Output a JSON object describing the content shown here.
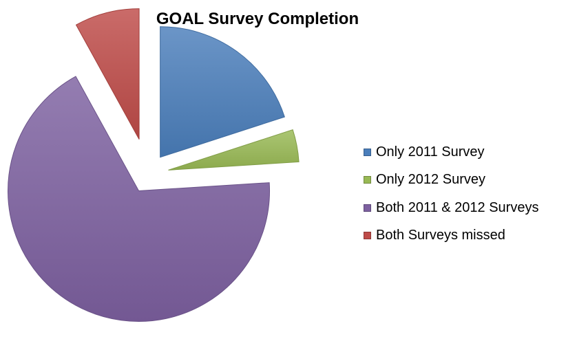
{
  "chart_data": {
    "type": "pie",
    "title": "GOAL Survey Completion",
    "exploded": true,
    "legend_position": "right",
    "slices": [
      {
        "label": "Only 2011 Survey",
        "value": 20,
        "color": "#4a7ebb"
      },
      {
        "label": "Only 2012 Survey",
        "value": 4,
        "color": "#98b954"
      },
      {
        "label": "Both 2011 & 2012 Surveys",
        "value": 68,
        "color": "#7d60a0"
      },
      {
        "label": "Both Surveys missed",
        "value": 8,
        "color": "#be4b48"
      }
    ]
  }
}
